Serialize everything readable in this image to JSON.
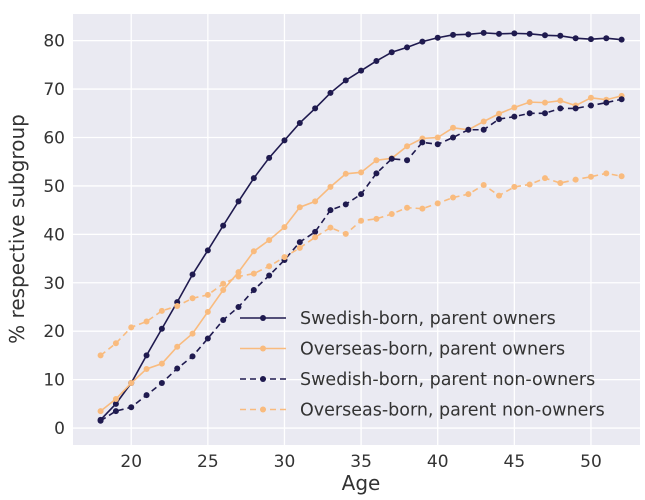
{
  "chart_data": {
    "type": "line",
    "x_label": "Age",
    "y_label": "% respective subgroup",
    "x": [
      18,
      19,
      20,
      21,
      22,
      23,
      24,
      25,
      26,
      27,
      28,
      29,
      30,
      31,
      32,
      33,
      34,
      35,
      36,
      37,
      38,
      39,
      40,
      41,
      42,
      43,
      44,
      45,
      46,
      47,
      48,
      49,
      50,
      51,
      52
    ],
    "series": [
      {
        "name": "Swedish-born, parent owners",
        "color": "#1f1a4f",
        "linestyle": "solid",
        "values": [
          1.7,
          5,
          9.3,
          15,
          20.5,
          26,
          31.7,
          36.7,
          41.8,
          46.8,
          51.6,
          55.8,
          59.4,
          63,
          66,
          69.2,
          71.8,
          73.8,
          75.8,
          77.6,
          78.6,
          79.8,
          80.6,
          81.2,
          81.3,
          81.6,
          81.4,
          81.5,
          81.4,
          81.1,
          81,
          80.5,
          80.3,
          80.5,
          80.2
        ]
      },
      {
        "name": "Overseas-born, parent owners",
        "color": "#f9bb7e",
        "linestyle": "solid",
        "values": [
          3.5,
          6,
          9.3,
          12.2,
          13.3,
          16.8,
          19.5,
          24,
          28.5,
          32.2,
          36.5,
          38.8,
          41.5,
          45.6,
          46.8,
          49.8,
          52.5,
          52.8,
          55.3,
          55.7,
          58.2,
          59.8,
          60,
          62,
          61.6,
          63.3,
          64.9,
          66.2,
          67.3,
          67.2,
          67.6,
          66.6,
          68.2,
          67.8,
          68.6
        ]
      },
      {
        "name": "Swedish-born, parent non-owners",
        "color": "#1f1a4f",
        "linestyle": "dashed",
        "values": [
          1.5,
          3.5,
          4.3,
          6.8,
          9.3,
          12.3,
          14.8,
          18.5,
          22.3,
          25,
          28.5,
          31.5,
          34.7,
          38.4,
          40.5,
          45,
          46.2,
          48.3,
          52.6,
          55.6,
          55.3,
          59,
          58.6,
          60,
          61.6,
          61.6,
          63.8,
          64.3,
          65,
          65,
          66,
          66,
          66.6,
          67.2,
          67.9
        ]
      },
      {
        "name": "Overseas-born, parent non-owners",
        "color": "#f9bb7e",
        "linestyle": "dashed",
        "values": [
          15,
          17.5,
          20.8,
          22,
          24.2,
          25.2,
          26.8,
          27.5,
          29.8,
          31.3,
          31.9,
          33.4,
          35.3,
          37.2,
          39.4,
          41.4,
          40.1,
          42.8,
          43.2,
          44.2,
          45.5,
          45.3,
          46.4,
          47.6,
          48.3,
          50.2,
          48,
          49.8,
          50.3,
          51.6,
          50.6,
          51.3,
          51.9,
          52.6,
          52
        ]
      }
    ],
    "xlim": [
      16.2,
      53.2
    ],
    "ylim": [
      -3.5,
      85.5
    ],
    "xticks": [
      20,
      25,
      30,
      35,
      40,
      45,
      50
    ],
    "yticks": [
      0,
      10,
      20,
      30,
      40,
      50,
      60,
      70,
      80
    ],
    "grid": true,
    "legend": "lower right"
  }
}
